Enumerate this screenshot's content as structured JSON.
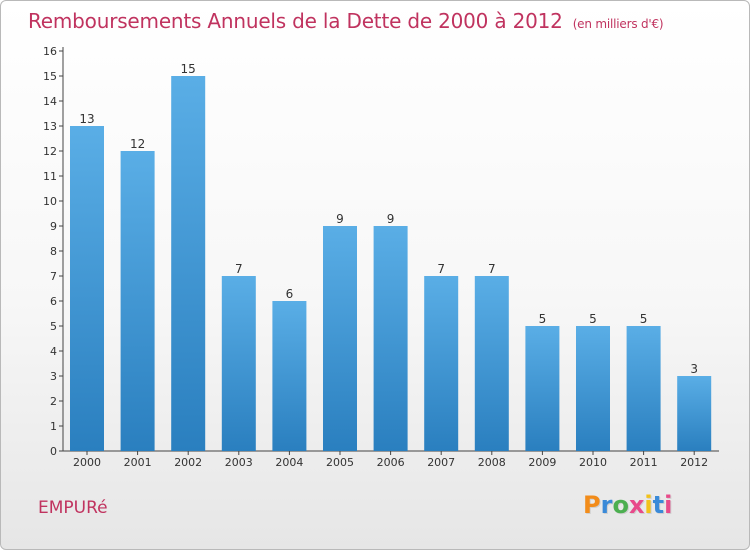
{
  "header": {
    "title": "Remboursements Annuels de la Dette de 2000 à 2012",
    "subtitle": "(en milliers d'€)"
  },
  "footer": {
    "commune": "EMPURé",
    "logo_text": "Proxiti"
  },
  "colors": {
    "title": "#c0335f",
    "bar_top": "#5aaee6",
    "bar_bottom": "#2a7fbf",
    "logo": [
      "#f28c1a",
      "#3a8ad8",
      "#4caf50",
      "#e84a8a",
      "#f2c21a",
      "#3a8ad8",
      "#e84a8a"
    ]
  },
  "chart_data": {
    "type": "bar",
    "title": "Remboursements Annuels de la Dette de 2000 à 2012",
    "subtitle": "(en milliers d'€)",
    "categories": [
      "2000",
      "2001",
      "2002",
      "2003",
      "2004",
      "2005",
      "2006",
      "2007",
      "2008",
      "2009",
      "2010",
      "2011",
      "2012"
    ],
    "values": [
      13,
      12,
      15,
      7,
      6,
      9,
      9,
      7,
      7,
      5,
      5,
      5,
      3
    ],
    "ylim": [
      0,
      16
    ],
    "yticks": [
      0,
      1,
      2,
      3,
      4,
      5,
      6,
      7,
      8,
      9,
      10,
      11,
      12,
      13,
      14,
      15,
      16
    ],
    "grid": false,
    "data_labels": true
  }
}
